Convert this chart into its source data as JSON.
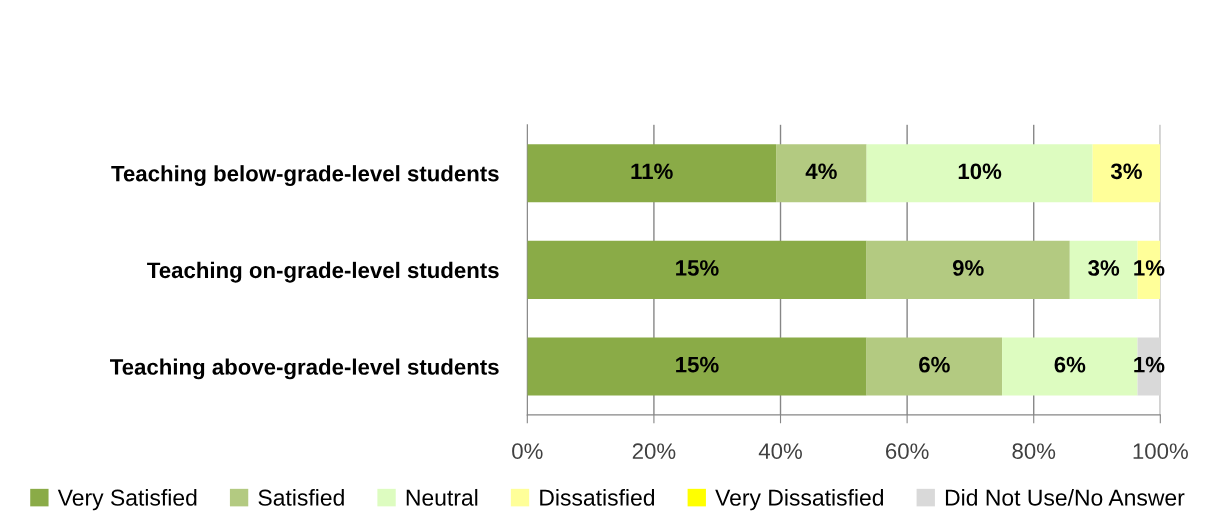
{
  "chart_data": {
    "type": "bar",
    "orientation": "horizontal",
    "stacked": true,
    "categories": [
      "Teaching below-grade-level students",
      "Teaching on-grade-level students",
      "Teaching above-grade-level students"
    ],
    "series": [
      {
        "name": "Very Satisfied",
        "color": "#8aab47",
        "values": [
          39.3,
          53.6,
          53.6
        ]
      },
      {
        "name": "Satisfied",
        "color": "#b3ca81",
        "values": [
          14.3,
          32.1,
          21.4
        ]
      },
      {
        "name": "Neutral",
        "color": "#ddfcc0",
        "values": [
          35.7,
          10.7,
          21.4
        ]
      },
      {
        "name": "Dissatisfied",
        "color": "#ffff99",
        "values": [
          10.7,
          3.6,
          null
        ]
      },
      {
        "name": "Very Dissatisfied",
        "color": "#ffff00",
        "values": [
          null,
          null,
          null
        ]
      },
      {
        "name": "Did Not Use/No Answer",
        "color": "#d9d9d9",
        "values": [
          null,
          null,
          3.6
        ]
      }
    ],
    "annotations": [
      "11%",
      "4%",
      "10%",
      "3%",
      "15%",
      "9%",
      "3%",
      "1%",
      "15%",
      "6%",
      "6%",
      "1%"
    ],
    "xlim": [
      0,
      100
    ],
    "xticks": [
      {
        "value": 0,
        "label": "0%"
      },
      {
        "value": 20,
        "label": "20%"
      },
      {
        "value": 40,
        "label": "40%"
      },
      {
        "value": 60,
        "label": "60%"
      },
      {
        "value": 80,
        "label": "80%"
      },
      {
        "value": 100,
        "label": "100%"
      }
    ],
    "grid": "x",
    "legend": "bottom"
  }
}
